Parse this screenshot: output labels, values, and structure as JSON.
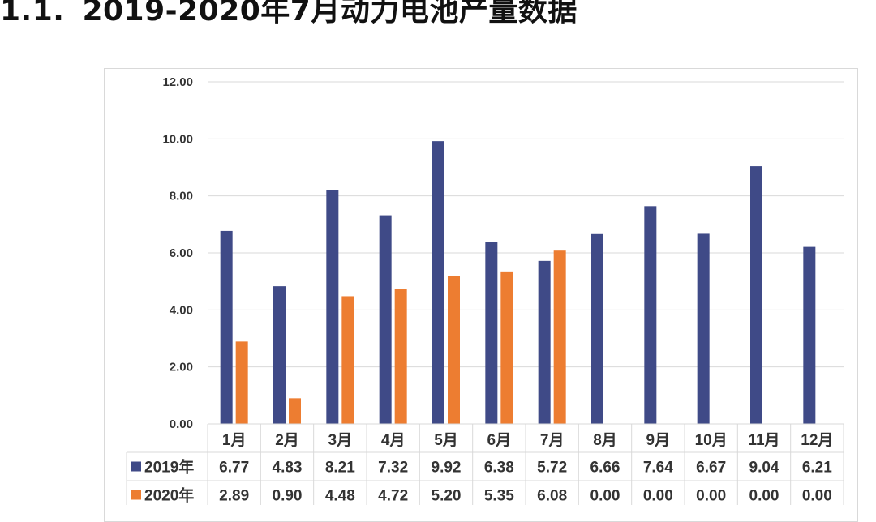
{
  "page": {
    "heading_number": "1.1.",
    "heading_text": "2019-2020年7月动力电池产量数据"
  },
  "chart_data": {
    "type": "bar",
    "title": "",
    "xlabel": "",
    "ylabel": "",
    "ylim": [
      0,
      12
    ],
    "yticks": [
      "0.00",
      "2.00",
      "4.00",
      "6.00",
      "8.00",
      "10.00",
      "12.00"
    ],
    "grid": true,
    "legend": "data-table",
    "categories": [
      "1月",
      "2月",
      "3月",
      "4月",
      "5月",
      "6月",
      "7月",
      "8月",
      "9月",
      "10月",
      "11月",
      "12月"
    ],
    "series": [
      {
        "name": "2019年",
        "color": "#3f4a87",
        "values": [
          6.77,
          4.83,
          8.21,
          7.32,
          9.92,
          6.38,
          5.72,
          6.66,
          7.64,
          6.67,
          9.04,
          6.21
        ],
        "labels": [
          "6.77",
          "4.83",
          "8.21",
          "7.32",
          "9.92",
          "6.38",
          "5.72",
          "6.66",
          "7.64",
          "6.67",
          "9.04",
          "6.21"
        ]
      },
      {
        "name": "2020年",
        "color": "#ed7d31",
        "values": [
          2.89,
          0.9,
          4.48,
          4.72,
          5.2,
          5.35,
          6.08,
          0.0,
          0.0,
          0.0,
          0.0,
          0.0
        ],
        "labels": [
          "2.89",
          "0.90",
          "4.48",
          "4.72",
          "5.20",
          "5.35",
          "6.08",
          "0.00",
          "0.00",
          "0.00",
          "0.00",
          "0.00"
        ]
      }
    ]
  }
}
